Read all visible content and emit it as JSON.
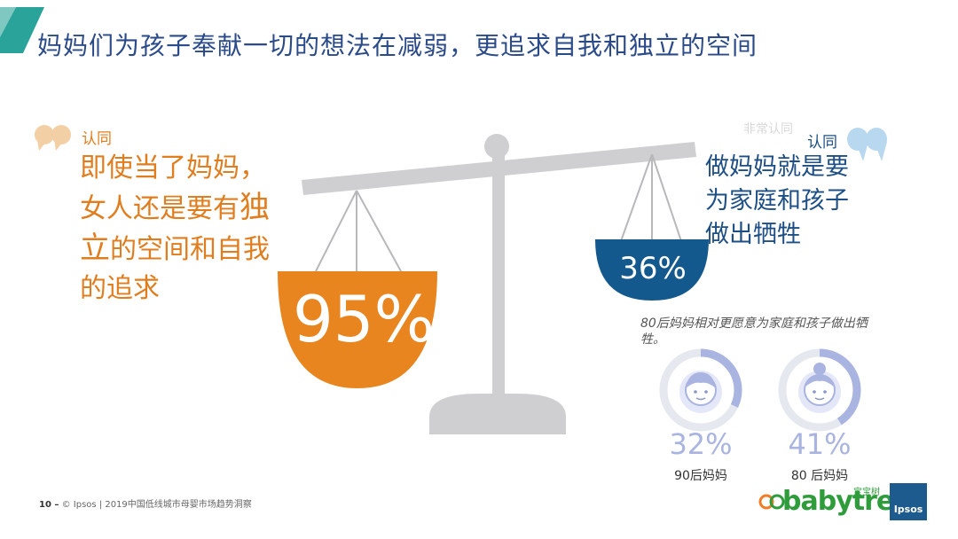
{
  "title": "妈妈们为孩子奉献一切的想法在减弱，更追求自我和独立的空间",
  "left": {
    "label": "认同",
    "statement_part1": "即使当了妈妈，女人还是要有",
    "statement_emph": "独立",
    "statement_part2": "的空间和自我的追求",
    "percentage": "95%",
    "color": "#e8851f"
  },
  "right": {
    "faint_label": "非常认同",
    "label": "认同",
    "statement": "做妈妈就是要为家庭和孩子做出牺牲",
    "percentage": "36%",
    "color": "#14598d"
  },
  "note": "80后妈妈相对更愿意为家庭和孩子做出牺牲。",
  "rings": [
    {
      "value": 32,
      "percentage": "32%",
      "label": "90后妈妈",
      "icon": "young-woman-icon"
    },
    {
      "value": 41,
      "percentage": "41%",
      "label": "80 后妈妈",
      "icon": "woman-bun-icon"
    }
  ],
  "footer": {
    "page": "10 –",
    "text": "© Ipsos | 2019中国低线城市母婴市场趋势洞察"
  },
  "logos": {
    "babytree": "babytree",
    "babytree_cn": "宝宝树",
    "ipsos": "Ipsos"
  },
  "colors": {
    "title": "#2a4a8a",
    "accent_teal": "#2aa39a",
    "scale_gray": "#cfcfd1",
    "ring_track": "#e6e8ef",
    "ring_fill": "#a9b4e0"
  }
}
